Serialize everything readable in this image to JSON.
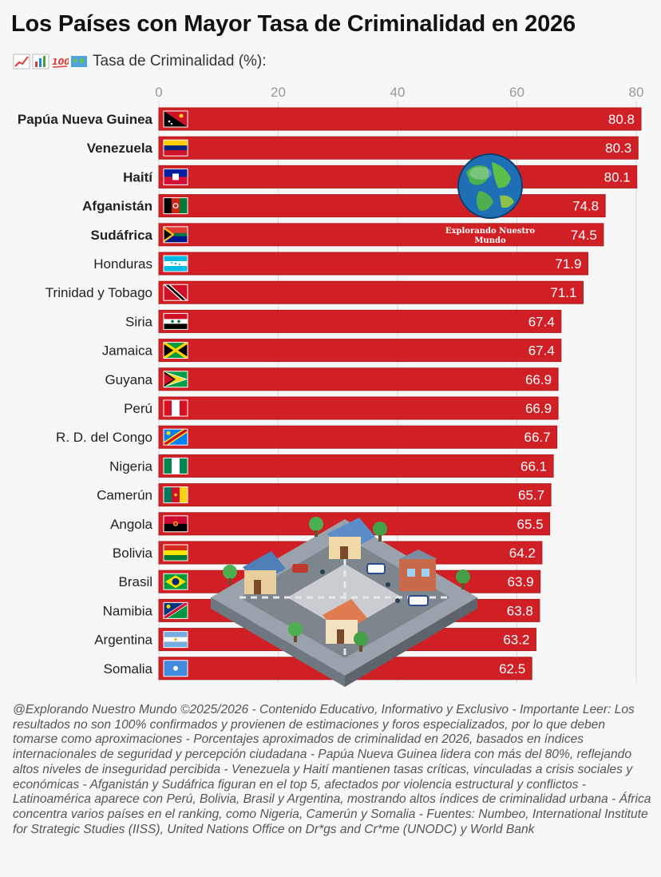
{
  "title": "Los Países con Mayor Tasa de Criminalidad en 2026",
  "subtitle": "Tasa de Criminalidad (%):",
  "subtitle_icons": [
    "chart-increasing-icon",
    "bar-chart-icon",
    "hundred-points-icon",
    "world-map-icon"
  ],
  "watermark": "Explorando Nuestro Mundo",
  "colors": {
    "bar": "#d12025",
    "bar_stroke": "#b01a1e",
    "label_text": "#ffffff",
    "grid": "#d9d9d9"
  },
  "chart_data": {
    "type": "bar",
    "orientation": "horizontal",
    "xlim": [
      0,
      80
    ],
    "xticks": [
      0,
      20,
      40,
      60,
      80
    ],
    "grid": true,
    "categories": [
      "Papúa Nueva Guinea",
      "Venezuela",
      "Haití",
      "Afganistán",
      "Sudáfrica",
      "Honduras",
      "Trinidad y Tobago",
      "Siria",
      "Jamaica",
      "Guyana",
      "Perú",
      "R. D. del Congo",
      "Nigeria",
      "Camerún",
      "Angola",
      "Bolivia",
      "Brasil",
      "Namibia",
      "Argentina",
      "Somalia"
    ],
    "values": [
      80.8,
      80.3,
      80.1,
      74.8,
      74.5,
      71.9,
      71.1,
      67.4,
      67.4,
      66.9,
      66.9,
      66.7,
      66.1,
      65.7,
      65.5,
      64.2,
      63.9,
      63.8,
      63.2,
      62.5
    ],
    "bold_categories": 5,
    "flags": [
      "png",
      "ven",
      "hti",
      "afg",
      "zaf",
      "hnd",
      "tto",
      "syr",
      "jam",
      "guy",
      "per",
      "cod",
      "nga",
      "cmr",
      "ago",
      "bol",
      "bra",
      "nam",
      "arg",
      "som"
    ]
  },
  "footer": "@Explorando Nuestro Mundo ©2025/2026 - Contenido Educativo, Informativo y Exclusivo - Importante Leer: Los resultados no son 100% confirmados y provienen de estimaciones y foros especializados, por lo que deben tomarse como aproximaciones - Porcentajes aproximados de criminalidad en 2026, basados en índices internacionales de seguridad y percepción ciudadana - Papúa Nueva Guinea lidera con más del 80%, reflejando altos niveles de inseguridad percibida - Venezuela y Haití mantienen tasas críticas, vinculadas a crisis sociales y económicas - Afganistán y Sudáfrica figuran en el top 5, afectados por violencia estructural y conflictos - Latinoamérica aparece con Perú, Bolivia, Brasil y Argentina, mostrando altos índices de criminalidad urbana - África concentra varios países en el ranking, como Nigeria, Camerún y Somalia - Fuentes: Numbeo, International Institute for Strategic Studies (IISS), United Nations Office on Dr*gs and Cr*me (UNODC) y World Bank"
}
